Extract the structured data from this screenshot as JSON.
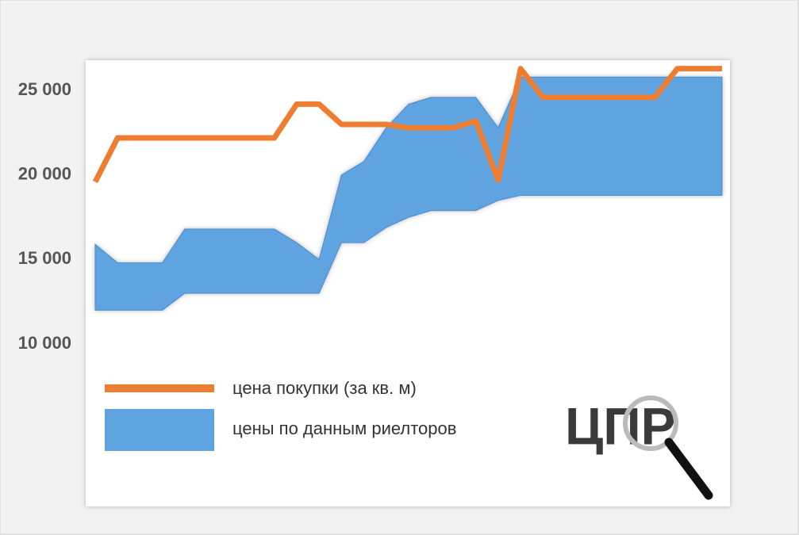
{
  "chart_data": {
    "type": "line-band",
    "logo": "ЦПР",
    "categories": [
      null,
      null,
      null,
      null,
      null,
      null,
      null,
      null,
      null,
      null,
      null,
      null,
      null,
      null,
      null,
      null,
      null,
      null,
      null,
      null,
      null,
      null,
      null,
      null,
      null,
      null,
      null,
      null,
      null
    ],
    "series": [
      {
        "name": "цена покупки (за кв. м)",
        "color": "#ed7d31",
        "values": [
          19600,
          22200,
          22200,
          22200,
          22200,
          22200,
          22200,
          22200,
          22200,
          24200,
          24200,
          23000,
          23000,
          23000,
          22800,
          22800,
          22800,
          23200,
          19700,
          26300,
          24600,
          24600,
          24600,
          24600,
          24600,
          24600,
          26300,
          26300,
          26300
        ]
      },
      {
        "name": "цены по данным риелторов",
        "color": "#5fa3e0",
        "high": [
          15900,
          14800,
          14800,
          14800,
          16800,
          16800,
          16800,
          16800,
          16800,
          16000,
          15000,
          20000,
          20800,
          22800,
          24200,
          24600,
          24600,
          24600,
          22800,
          25800,
          25800,
          25800,
          25800,
          25800,
          25800,
          25800,
          25800,
          25800,
          25800
        ],
        "low": [
          12000,
          12000,
          12000,
          12000,
          13000,
          13000,
          13000,
          13000,
          13000,
          13000,
          13000,
          16000,
          16000,
          16900,
          17500,
          17900,
          17900,
          17900,
          18500,
          18800,
          18800,
          18800,
          18800,
          18800,
          18800,
          18800,
          18800,
          18800,
          18800
        ]
      }
    ],
    "ylim": [
      0,
      26800
    ],
    "yticks": [
      {
        "value": 10000,
        "label": "10 000"
      },
      {
        "value": 15000,
        "label": "15 000"
      },
      {
        "value": 20000,
        "label": "20 000"
      },
      {
        "value": 25000,
        "label": "25 000"
      }
    ],
    "legend": "bottom-left"
  }
}
